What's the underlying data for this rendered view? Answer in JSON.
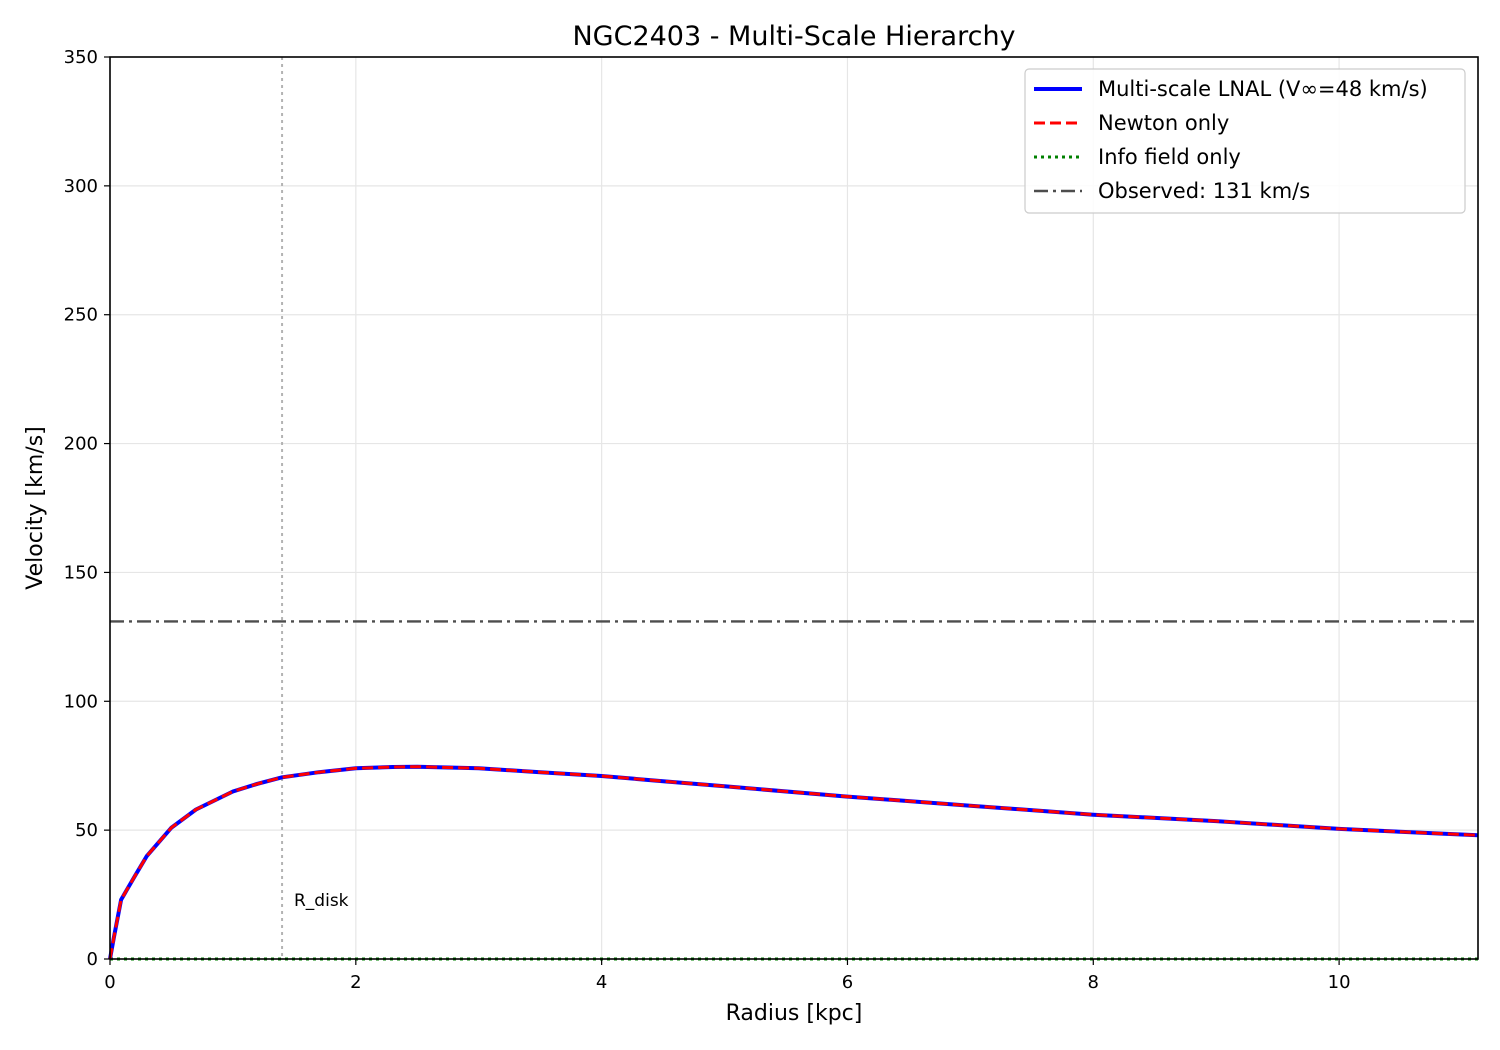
{
  "chart_data": {
    "type": "line",
    "title": "NGC2403 - Multi-Scale Hierarchy",
    "xlabel": "Radius [kpc]",
    "ylabel": "Velocity [km/s]",
    "xlim": [
      0,
      11.13
    ],
    "ylim": [
      0,
      350
    ],
    "xticks": [
      0,
      2,
      4,
      6,
      8,
      10
    ],
    "yticks": [
      0,
      50,
      100,
      150,
      200,
      250,
      300,
      350
    ],
    "grid": true,
    "legend_position": "top-right",
    "x": [
      0.0,
      0.03,
      0.09,
      0.2,
      0.3,
      0.5,
      0.7,
      1.0,
      1.2,
      1.4,
      1.7,
      2.0,
      2.3,
      2.5,
      3.0,
      3.5,
      4.0,
      4.5,
      5.0,
      6.0,
      7.0,
      8.0,
      9.0,
      10.0,
      11.13
    ],
    "series": [
      {
        "name": "Multi-scale LNAL (V∞=48 km/s)",
        "color": "#0000ff",
        "style": "solid",
        "values": [
          0,
          8,
          23,
          32,
          40,
          51,
          58,
          65,
          68,
          70.5,
          72.5,
          74,
          74.5,
          74.6,
          74,
          72.5,
          71,
          69,
          67,
          63,
          59.5,
          56,
          53.5,
          50.5,
          48
        ]
      },
      {
        "name": "Newton only",
        "color": "#ff0000",
        "style": "dashed",
        "values": [
          0,
          8,
          23,
          32,
          40,
          51,
          58,
          65,
          68,
          70.5,
          72.5,
          74,
          74.5,
          74.6,
          74,
          72.5,
          71,
          69,
          67,
          63,
          59.5,
          56,
          53.5,
          50.5,
          48
        ]
      },
      {
        "name": "Info field only",
        "color": "#008000",
        "style": "dotted",
        "values": [
          0,
          0,
          0,
          0,
          0,
          0,
          0,
          0,
          0,
          0,
          0,
          0,
          0,
          0,
          0,
          0,
          0,
          0,
          0,
          0,
          0,
          0,
          0,
          0,
          0
        ]
      }
    ],
    "reference_lines": [
      {
        "orientation": "horizontal",
        "value": 131,
        "name": "Observed: 131 km/s",
        "color": "#4d4d4d",
        "style": "dashdot"
      },
      {
        "orientation": "vertical",
        "value": 1.4,
        "label": "R_disk",
        "color": "#b3b3b3",
        "style": "dotted"
      }
    ]
  }
}
